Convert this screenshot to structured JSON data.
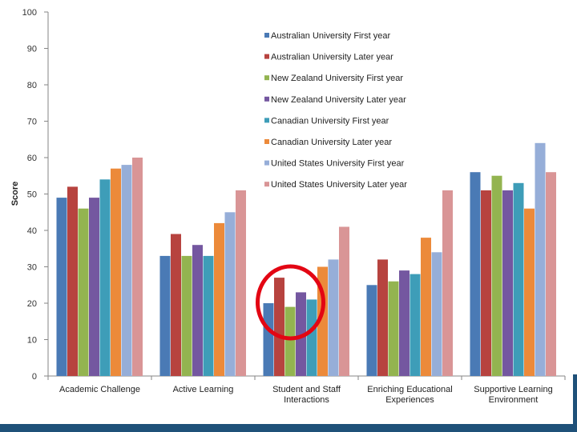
{
  "colors": {
    "band": "#1f5179",
    "axis": "#868686",
    "highlight": "#e30613"
  },
  "chart_data": {
    "type": "bar",
    "title": "",
    "xlabel": "",
    "ylabel": "Score",
    "ylim": [
      0,
      100
    ],
    "yticks": [
      0,
      10,
      20,
      30,
      40,
      50,
      60,
      70,
      80,
      90,
      100
    ],
    "grid": false,
    "legend_position": "top-right",
    "categories": [
      [
        "Academic Challenge"
      ],
      [
        "Active Learning"
      ],
      [
        "Student and Staff",
        "Interactions"
      ],
      [
        "Enriching Educational",
        "Experiences"
      ],
      [
        "Supportive Learning",
        "Environment"
      ]
    ],
    "series": [
      {
        "name": "Australian University First year",
        "color": "#4a7ab5",
        "values": [
          49,
          33,
          20,
          25,
          56
        ]
      },
      {
        "name": "Australian University Later year",
        "color": "#b7433f",
        "values": [
          52,
          39,
          27,
          32,
          51
        ]
      },
      {
        "name": "New Zealand University First year",
        "color": "#93b450",
        "values": [
          46,
          33,
          19,
          26,
          55
        ]
      },
      {
        "name": "New Zealand University Later year",
        "color": "#7457a0",
        "values": [
          49,
          36,
          23,
          29,
          51
        ]
      },
      {
        "name": "Canadian University First year",
        "color": "#3e9db8",
        "values": [
          54,
          33,
          21,
          28,
          53
        ]
      },
      {
        "name": "Canadian University Later year",
        "color": "#ec8a3a",
        "values": [
          57,
          42,
          30,
          38,
          46
        ]
      },
      {
        "name": "United States University First year",
        "color": "#96aed8",
        "values": [
          58,
          45,
          32,
          34,
          64
        ]
      },
      {
        "name": "United States University Later year",
        "color": "#d99596",
        "values": [
          60,
          51,
          41,
          51,
          56
        ]
      }
    ],
    "annotations": [
      {
        "type": "circle",
        "category_index": 2,
        "description": "red circle highlighting Student and Staff Interactions"
      }
    ]
  }
}
